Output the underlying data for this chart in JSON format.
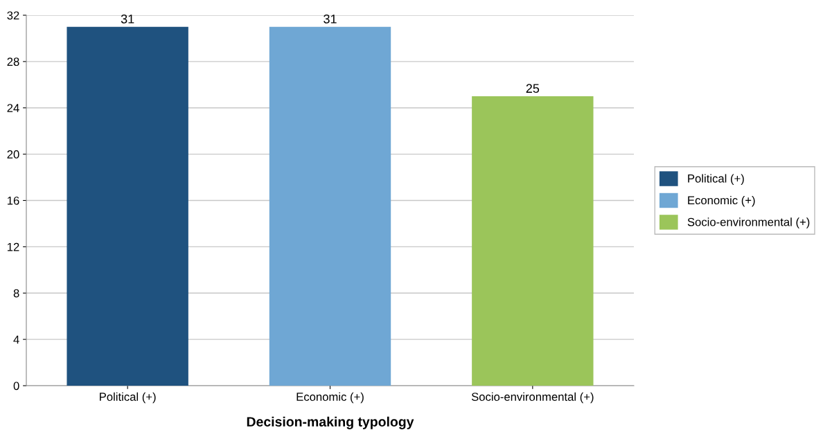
{
  "chart_data": {
    "type": "bar",
    "xlabel": "Decision-making typology",
    "categories": [
      "Political (+)",
      "Economic (+)",
      "Socio-environmental (+)"
    ],
    "stacked": true,
    "series": [
      {
        "name": "Political (+)",
        "color": "#1f527f",
        "values": [
          31,
          null,
          null
        ]
      },
      {
        "name": "Economic (+)",
        "color": "#6fa7d4",
        "values": [
          null,
          31,
          null
        ]
      },
      {
        "name": "Socio-environmental (+)",
        "color": "#9bc55a",
        "values": [
          null,
          null,
          25
        ]
      }
    ],
    "ylim": [
      0,
      32
    ],
    "yticks": [
      0,
      4,
      8,
      12,
      16,
      20,
      24,
      28,
      32
    ],
    "grid": "y",
    "legend": "right",
    "data_labels": true
  }
}
